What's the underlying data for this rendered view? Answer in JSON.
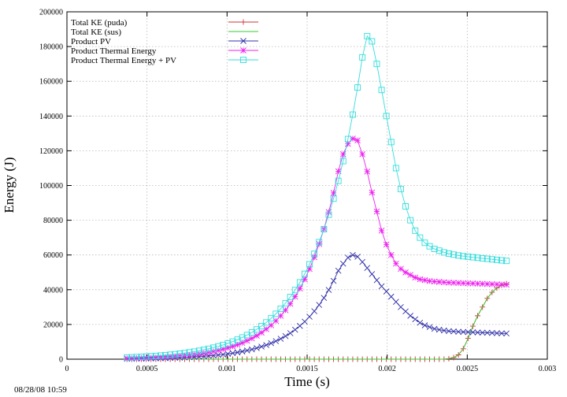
{
  "timestamp": "08/28/08 10:59",
  "chart_data": {
    "type": "line",
    "xlabel": "Time (s)",
    "ylabel": "Energy (J)",
    "xlim": [
      0,
      0.003
    ],
    "ylim": [
      0,
      200000
    ],
    "xticks": [
      0,
      0.0005,
      0.001,
      0.0015,
      0.002,
      0.0025,
      0.003
    ],
    "xtick_labels": [
      "0",
      "0.0005",
      "0.001",
      "0.0015",
      "0.002",
      "0.0025",
      "0.003"
    ],
    "yticks": [
      0,
      20000,
      40000,
      60000,
      80000,
      100000,
      120000,
      140000,
      160000,
      180000,
      200000
    ],
    "ytick_labels": [
      "0",
      "20000",
      "40000",
      "60000",
      "80000",
      "100000",
      "120000",
      "140000",
      "160000",
      "180000",
      "200000"
    ],
    "grid": true,
    "legend_position": "top-left",
    "x_samples": {
      "start": 0.000375,
      "step": 3e-05,
      "count": 80
    },
    "series": [
      {
        "name": "Total KE (puda)",
        "color": "#cc3333",
        "marker": "plus",
        "values": [
          0,
          0,
          0,
          0,
          0,
          0,
          0,
          0,
          0,
          0,
          0,
          0,
          0,
          0,
          0,
          0,
          0,
          0,
          0,
          0,
          0,
          0,
          0,
          0,
          0,
          0,
          0,
          0,
          0,
          0,
          0,
          0,
          0,
          0,
          0,
          0,
          0,
          0,
          0,
          0,
          0,
          0,
          0,
          0,
          0,
          0,
          0,
          0,
          0,
          0,
          0,
          0,
          0,
          0,
          0,
          0,
          0,
          0,
          0,
          0,
          0,
          0,
          0,
          0,
          0,
          0,
          50,
          300,
          900,
          2500,
          6000,
          12000,
          19000,
          25000,
          30000,
          35000,
          38500,
          41000,
          42500,
          43500
        ]
      },
      {
        "name": "Total KE (sus)",
        "color": "#33cc33",
        "marker": "none",
        "values": [
          0,
          0,
          0,
          0,
          0,
          0,
          0,
          0,
          0,
          0,
          0,
          0,
          0,
          0,
          0,
          0,
          0,
          0,
          0,
          0,
          0,
          0,
          0,
          0,
          0,
          0,
          0,
          0,
          0,
          0,
          0,
          0,
          0,
          0,
          0,
          0,
          0,
          0,
          0,
          0,
          0,
          0,
          0,
          0,
          0,
          0,
          0,
          0,
          0,
          0,
          0,
          0,
          0,
          0,
          0,
          0,
          0,
          0,
          0,
          0,
          0,
          0,
          0,
          0,
          0,
          0,
          50,
          300,
          900,
          2500,
          6000,
          12000,
          19000,
          25000,
          30000,
          35000,
          38500,
          41000,
          42500,
          43500
        ]
      },
      {
        "name": "Product PV",
        "color": "#3333aa",
        "marker": "x",
        "values": [
          235,
          265,
          300,
          339,
          383,
          433,
          490,
          553,
          625,
          707,
          798,
          902,
          1020,
          1152,
          1302,
          1472,
          1663,
          1879,
          2124,
          2400,
          2712,
          3064,
          3462,
          3912,
          4421,
          4996,
          5645,
          6379,
          7208,
          8145,
          9204,
          10400,
          11752,
          13280,
          15006,
          16957,
          19161,
          21652,
          24467,
          27648,
          31242,
          35303,
          39892,
          45078,
          50938,
          55000,
          58500,
          60000,
          59000,
          56000,
          52500,
          49000,
          45500,
          42000,
          39000,
          36000,
          33000,
          30000,
          27500,
          25000,
          23000,
          21000,
          19500,
          18500,
          17500,
          17000,
          16500,
          16200,
          16000,
          15800,
          15700,
          15600,
          15500,
          15400,
          15300,
          15200,
          15100,
          15000,
          14900,
          14800
        ]
      },
      {
        "name": "Product Thermal Energy",
        "color": "#ee22ee",
        "marker": "asterisk",
        "values": [
          500,
          565,
          638,
          721,
          815,
          921,
          1041,
          1176,
          1329,
          1502,
          1697,
          1917,
          2166,
          2448,
          2766,
          3126,
          3532,
          3991,
          4510,
          5096,
          5759,
          6507,
          7353,
          8309,
          9389,
          10609,
          11988,
          13547,
          15308,
          17298,
          19546,
          22088,
          24959,
          28204,
          31870,
          36013,
          40695,
          45986,
          51964,
          58719,
          66352,
          74977,
          84724,
          95739,
          108185,
          118000,
          124000,
          127000,
          126000,
          118000,
          108000,
          96000,
          85000,
          74000,
          66000,
          60000,
          55000,
          52000,
          50000,
          48500,
          47000,
          46000,
          45500,
          45000,
          44700,
          44500,
          44300,
          44100,
          44000,
          43900,
          43800,
          43700,
          43600,
          43500,
          43400,
          43300,
          43200,
          43100,
          43000,
          42900
        ]
      },
      {
        "name": "Product Thermal Energy + PV",
        "color": "#33dddd",
        "marker": "square",
        "values": [
          1000,
          1111,
          1234,
          1371,
          1523,
          1692,
          1880,
          2089,
          2321,
          2578,
          2864,
          3182,
          3535,
          3928,
          4364,
          4849,
          5387,
          5985,
          6650,
          7388,
          8208,
          9119,
          10131,
          11256,
          12506,
          13894,
          15437,
          17150,
          19055,
          21170,
          23520,
          26130,
          29031,
          32253,
          35833,
          39811,
          44230,
          49140,
          54594,
          60654,
          67386,
          74866,
          83176,
          92408,
          102666,
          114062,
          126723,
          140789,
          156417,
          173780,
          186000,
          183000,
          170000,
          155000,
          140000,
          125000,
          110000,
          98000,
          88000,
          80000,
          74000,
          70000,
          67000,
          65000,
          63500,
          62500,
          61500,
          60800,
          60200,
          59700,
          59300,
          59000,
          58700,
          58400,
          58100,
          57800,
          57500,
          57200,
          56900,
          56600
        ]
      }
    ]
  }
}
